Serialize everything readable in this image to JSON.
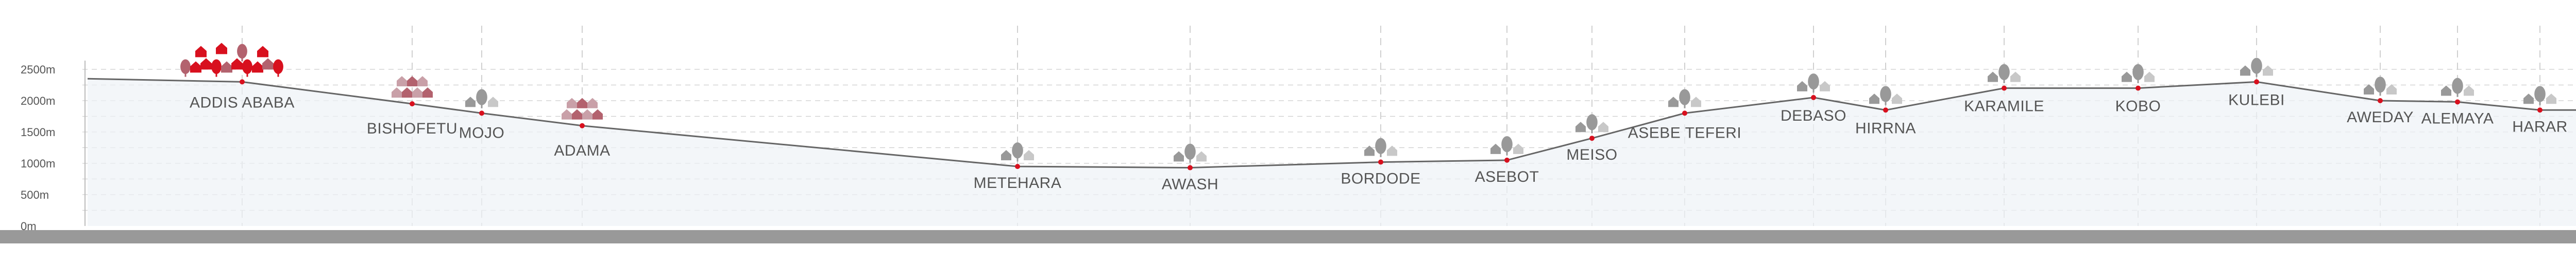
{
  "elevation_axis": {
    "ticks": [
      {
        "label": "2500m",
        "value": 2500
      },
      {
        "label": "2000m",
        "value": 2000
      },
      {
        "label": "1500m",
        "value": 1500
      },
      {
        "label": "1000m",
        "value": 1000
      },
      {
        "label": "500m",
        "value": 500
      },
      {
        "label": "0m",
        "value": 0
      }
    ]
  },
  "stations": [
    {
      "name": "ADDIS ABABA",
      "elevation": 2300,
      "highlight": true
    },
    {
      "name": "BISHOFETU",
      "elevation": 1950,
      "highlight": false
    },
    {
      "name": "MOJO",
      "elevation": 1800,
      "highlight": false
    },
    {
      "name": "ADAMA",
      "elevation": 1600,
      "highlight": false
    },
    {
      "name": "METEHARA",
      "elevation": 950,
      "highlight": false
    },
    {
      "name": "AWASH",
      "elevation": 930,
      "highlight": false
    },
    {
      "name": "BORDODE",
      "elevation": 1020,
      "highlight": false
    },
    {
      "name": "ASEBOT",
      "elevation": 1050,
      "highlight": false
    },
    {
      "name": "MEISO",
      "elevation": 1400,
      "highlight": false
    },
    {
      "name": "ASEBE TEFERI",
      "elevation": 1800,
      "highlight": false
    },
    {
      "name": "DEBASO",
      "elevation": 2050,
      "highlight": false
    },
    {
      "name": "HIRRNA",
      "elevation": 1850,
      "highlight": false
    },
    {
      "name": "KARAMILE",
      "elevation": 2200,
      "highlight": false
    },
    {
      "name": "KOBO",
      "elevation": 2200,
      "highlight": false
    },
    {
      "name": "KULEBI",
      "elevation": 2300,
      "highlight": false
    },
    {
      "name": "AWEDAY",
      "elevation": 2000,
      "highlight": false
    },
    {
      "name": "ALEMAYA",
      "elevation": 1980,
      "highlight": false
    },
    {
      "name": "HARAR",
      "elevation": 1850,
      "highlight": false
    }
  ],
  "colors": {
    "profile_line": "#666666",
    "grid": "#cccccc",
    "accent": "#d8101e",
    "icon": "#999999",
    "icon_highlight": "#b3626e",
    "label": "#555555",
    "ground": "#999999"
  }
}
